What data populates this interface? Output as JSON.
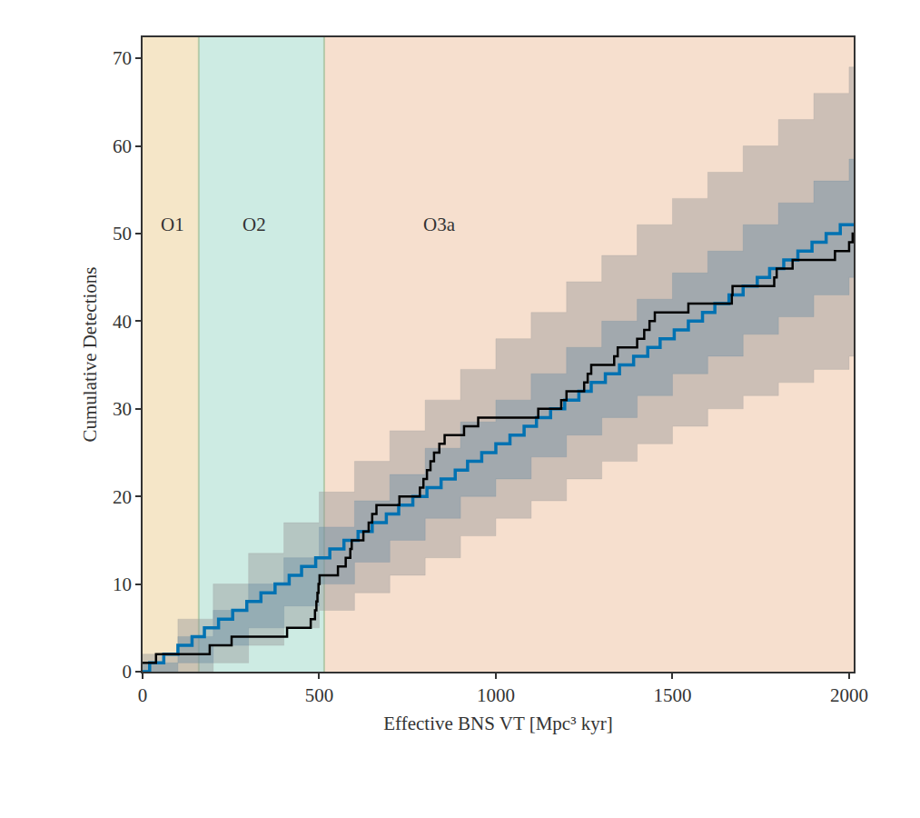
{
  "chart_data": {
    "type": "line",
    "x_label": "Effective BNS VT [Mpc³ kyr]",
    "y_label": "Cumulative Detections",
    "xlim": [
      0,
      2013
    ],
    "ylim": [
      0,
      72.4
    ],
    "xticks": [
      0,
      500,
      1000,
      1500,
      2000
    ],
    "yticks": [
      0,
      10,
      20,
      30,
      40,
      50,
      60,
      70
    ],
    "grid": false,
    "regions": [
      {
        "label": "O1",
        "start": 0,
        "end": 159,
        "color": "#f5e6c8",
        "label_x": 85,
        "label_y": 51
      },
      {
        "label": "O2",
        "start": 159,
        "end": 514,
        "color": "#cdebe3",
        "label_x": 317,
        "label_y": 51
      },
      {
        "label": "O3a",
        "start": 514,
        "end": 2013,
        "color": "#f6dfce",
        "label_x": 840,
        "label_y": 51
      }
    ],
    "bands": [
      {
        "color": "#9a9a9a",
        "x": [
          0,
          100,
          200,
          300,
          400,
          500,
          600,
          700,
          800,
          900,
          1000,
          1100,
          1200,
          1300,
          1400,
          1500,
          1600,
          1700,
          1800,
          1900,
          2000,
          2013
        ],
        "lower": [
          0,
          0,
          1,
          3,
          5,
          7,
          9,
          11,
          13,
          15.5,
          17.5,
          19.5,
          22,
          24,
          26,
          28,
          30,
          31.5,
          33,
          34.5,
          36,
          36
        ],
        "upper": [
          2,
          6,
          10,
          13.5,
          17,
          20.5,
          24,
          27.5,
          31,
          34.5,
          38,
          41,
          44.5,
          47.5,
          51,
          54,
          57,
          60,
          63,
          66,
          69,
          69
        ]
      },
      {
        "color": "#6f8fa3",
        "x": [
          0,
          100,
          200,
          300,
          400,
          500,
          600,
          700,
          800,
          900,
          1000,
          1100,
          1200,
          1300,
          1400,
          1500,
          1600,
          1700,
          1800,
          1900,
          2000,
          2013
        ],
        "lower": [
          0,
          1,
          3,
          5,
          7.5,
          10,
          12.5,
          15,
          17.5,
          20,
          22,
          24.5,
          27,
          29,
          31.5,
          34,
          36,
          38.5,
          40.5,
          43,
          45,
          45
        ],
        "upper": [
          1,
          4,
          7,
          10,
          13,
          16.5,
          19.5,
          22.5,
          25.5,
          28.5,
          31,
          34,
          37,
          40,
          42.5,
          45.5,
          48,
          51,
          53.5,
          56,
          58.5,
          58.5
        ]
      }
    ],
    "series": [
      {
        "color": "#0072b2",
        "line_style": "steps",
        "x": [
          0,
          20,
          60,
          100,
          140,
          175,
          215,
          255,
          295,
          335,
          375,
          415,
          450,
          490,
          530,
          570,
          610,
          650,
          690,
          725,
          765,
          805,
          845,
          885,
          920,
          960,
          1000,
          1040,
          1080,
          1115,
          1155,
          1195,
          1235,
          1270,
          1310,
          1350,
          1390,
          1430,
          1465,
          1505,
          1545,
          1585,
          1620,
          1660,
          1700,
          1740,
          1775,
          1815,
          1855,
          1895,
          1935,
          1975,
          2013
        ],
        "values": [
          0,
          1,
          2,
          3,
          4,
          5,
          6,
          7,
          8,
          9,
          10,
          11,
          12,
          13,
          14,
          15,
          16,
          17,
          18,
          19,
          20,
          21,
          22,
          23,
          24,
          25,
          26,
          27,
          28,
          29,
          30,
          31,
          32,
          33,
          34,
          35,
          36,
          37,
          38,
          39,
          40,
          41,
          42,
          43,
          44,
          45,
          46,
          47,
          48,
          49,
          50,
          51,
          51
        ]
      },
      {
        "color": "#000000",
        "line_style": "steps",
        "x": [
          0,
          38,
          190,
          252,
          409,
          476,
          488,
          492,
          495,
          498,
          501,
          553,
          575,
          588,
          592,
          625,
          640,
          650,
          662,
          727,
          785,
          795,
          805,
          815,
          825,
          840,
          855,
          910,
          950,
          1120,
          1185,
          1200,
          1250,
          1260,
          1270,
          1335,
          1345,
          1400,
          1420,
          1435,
          1450,
          1545,
          1668,
          1670,
          1788,
          1795,
          1840,
          1960,
          2000,
          2010,
          2013
        ],
        "values": [
          1,
          2,
          3,
          4,
          5,
          6,
          7,
          8,
          9,
          10,
          11,
          12,
          13,
          14,
          15,
          16,
          17,
          18,
          19,
          20,
          21,
          22,
          23,
          24,
          25,
          26,
          27,
          28,
          29,
          30,
          31,
          32,
          33,
          34,
          35,
          36,
          37,
          38,
          39,
          40,
          41,
          42,
          43,
          44,
          45,
          46,
          47,
          48,
          49,
          50,
          50
        ]
      }
    ]
  }
}
